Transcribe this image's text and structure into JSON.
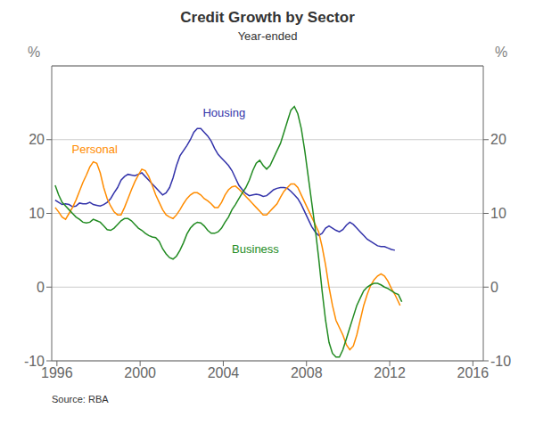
{
  "chart_data": {
    "type": "line",
    "title": "Credit Growth by Sector",
    "subtitle": "Year-ended",
    "ylabel": "%",
    "y2label": "%",
    "source": "Source: RBA",
    "xlim": [
      1995.75,
      2016.5
    ],
    "xticks": [
      1996,
      2000,
      2004,
      2008,
      2012,
      2016
    ],
    "ylim": [
      -10,
      30
    ],
    "yticks": [
      -10,
      0,
      10,
      20
    ],
    "y2lim": [
      -10,
      30
    ],
    "y2ticks": [
      -10,
      0,
      10,
      20
    ],
    "grid": true,
    "annotations": [
      {
        "text": "Housing",
        "x": 2002.8,
        "y": 22.5,
        "color": "#3333AA"
      },
      {
        "text": "Personal",
        "x": 1996.5,
        "y": 17.5,
        "color": "#FF8C00"
      },
      {
        "text": "Business",
        "x": 2004.2,
        "y": 4.0,
        "color": "#228B22"
      }
    ],
    "series": [
      {
        "name": "Housing",
        "color": "#3333AA",
        "x": [
          1995.917,
          1996.083,
          1996.25,
          1996.417,
          1996.583,
          1996.75,
          1996.917,
          1997.083,
          1997.25,
          1997.417,
          1997.583,
          1997.75,
          1997.917,
          1998.083,
          1998.25,
          1998.417,
          1998.583,
          1998.75,
          1998.917,
          1999.083,
          1999.25,
          1999.417,
          1999.583,
          1999.75,
          1999.917,
          2000.083,
          2000.25,
          2000.417,
          2000.583,
          2000.75,
          2000.917,
          2001.083,
          2001.25,
          2001.417,
          2001.583,
          2001.75,
          2001.917,
          2002.083,
          2002.25,
          2002.417,
          2002.583,
          2002.75,
          2002.917,
          2003.083,
          2003.25,
          2003.417,
          2003.583,
          2003.75,
          2003.917,
          2004.083,
          2004.25,
          2004.417,
          2004.583,
          2004.75,
          2004.917,
          2005.083,
          2005.25,
          2005.417,
          2005.583,
          2005.75,
          2005.917,
          2006.083,
          2006.25,
          2006.417,
          2006.583,
          2006.75,
          2006.917,
          2007.083,
          2007.25,
          2007.417,
          2007.583,
          2007.75,
          2007.917,
          2008.083,
          2008.25,
          2008.417,
          2008.583,
          2008.75,
          2008.917,
          2009.083,
          2009.25,
          2009.417,
          2009.583,
          2009.75,
          2009.917,
          2010.083,
          2010.25,
          2010.417,
          2010.583,
          2010.75,
          2010.917,
          2011.083,
          2011.25,
          2011.417,
          2011.583,
          2011.75,
          2011.917,
          2012.083,
          2012.25
        ],
        "values": [
          11.8,
          11.5,
          11.2,
          11.3,
          11.2,
          10.9,
          11.0,
          11.4,
          11.3,
          11.3,
          11.5,
          11.2,
          11.1,
          11.0,
          11.2,
          11.5,
          12.0,
          12.8,
          13.5,
          14.5,
          15.0,
          15.3,
          15.2,
          15.1,
          15.3,
          15.5,
          15.0,
          14.5,
          14.0,
          13.5,
          13.0,
          12.5,
          12.8,
          13.5,
          14.8,
          16.5,
          17.8,
          18.5,
          19.2,
          20.0,
          21.0,
          21.5,
          21.5,
          21.0,
          20.5,
          19.8,
          18.8,
          18.0,
          17.5,
          17.0,
          16.5,
          15.8,
          14.8,
          13.8,
          13.2,
          12.7,
          12.4,
          12.5,
          12.6,
          12.5,
          12.3,
          12.4,
          12.8,
          13.2,
          13.4,
          13.5,
          13.5,
          13.4,
          13.0,
          12.5,
          12.0,
          11.2,
          10.2,
          9.2,
          8.2,
          7.5,
          7.0,
          7.3,
          8.0,
          8.3,
          8.0,
          7.7,
          7.5,
          7.8,
          8.4,
          8.8,
          8.5,
          8.0,
          7.5,
          7.0,
          6.5,
          6.2,
          5.9,
          5.6,
          5.5,
          5.5,
          5.3,
          5.1,
          5.0
        ]
      },
      {
        "name": "Personal",
        "color": "#FF8C00",
        "x": [
          1995.917,
          1996.083,
          1996.25,
          1996.417,
          1996.583,
          1996.75,
          1996.917,
          1997.083,
          1997.25,
          1997.417,
          1997.583,
          1997.75,
          1997.917,
          1998.083,
          1998.25,
          1998.417,
          1998.583,
          1998.75,
          1998.917,
          1999.083,
          1999.25,
          1999.417,
          1999.583,
          1999.75,
          1999.917,
          2000.083,
          2000.25,
          2000.417,
          2000.583,
          2000.75,
          2000.917,
          2001.083,
          2001.25,
          2001.417,
          2001.583,
          2001.75,
          2001.917,
          2002.083,
          2002.25,
          2002.417,
          2002.583,
          2002.75,
          2002.917,
          2003.083,
          2003.25,
          2003.417,
          2003.583,
          2003.75,
          2003.917,
          2004.083,
          2004.25,
          2004.417,
          2004.583,
          2004.75,
          2004.917,
          2005.083,
          2005.25,
          2005.417,
          2005.583,
          2005.75,
          2005.917,
          2006.083,
          2006.25,
          2006.417,
          2006.583,
          2006.75,
          2006.917,
          2007.083,
          2007.25,
          2007.417,
          2007.583,
          2007.75,
          2007.917,
          2008.083,
          2008.25,
          2008.417,
          2008.583,
          2008.75,
          2008.917,
          2009.083,
          2009.25,
          2009.417,
          2009.583,
          2009.75,
          2009.917,
          2010.083,
          2010.25,
          2010.417,
          2010.583,
          2010.75,
          2010.917,
          2011.083,
          2011.25,
          2011.417,
          2011.583,
          2011.75,
          2011.917,
          2012.083,
          2012.25,
          2012.417,
          2012.5
        ],
        "values": [
          10.8,
          10.2,
          9.5,
          9.2,
          10.0,
          10.8,
          11.8,
          13.0,
          14.2,
          15.2,
          16.3,
          17.0,
          16.8,
          15.5,
          13.5,
          12.0,
          11.0,
          10.2,
          9.8,
          9.8,
          10.8,
          12.0,
          13.2,
          14.3,
          15.2,
          16.0,
          15.8,
          15.0,
          13.8,
          12.5,
          11.5,
          10.5,
          9.8,
          9.5,
          9.3,
          9.8,
          10.5,
          11.3,
          12.0,
          12.5,
          12.8,
          12.8,
          12.5,
          12.0,
          11.7,
          11.3,
          10.8,
          10.8,
          11.5,
          12.5,
          13.2,
          13.6,
          13.7,
          13.3,
          12.8,
          12.3,
          11.8,
          11.3,
          10.8,
          10.3,
          9.8,
          9.8,
          10.3,
          10.8,
          11.3,
          12.2,
          13.0,
          13.5,
          14.0,
          14.0,
          13.5,
          12.5,
          11.5,
          10.5,
          9.5,
          8.5,
          7.5,
          5.5,
          3.0,
          0.0,
          -2.5,
          -4.5,
          -5.5,
          -6.5,
          -7.8,
          -8.5,
          -8.0,
          -6.5,
          -4.5,
          -2.5,
          -1.0,
          0.2,
          1.0,
          1.5,
          1.8,
          1.5,
          0.8,
          -0.2,
          -1.0,
          -2.0,
          -2.5
        ]
      },
      {
        "name": "Business",
        "color": "#228B22",
        "x": [
          1995.917,
          1996.083,
          1996.25,
          1996.417,
          1996.583,
          1996.75,
          1996.917,
          1997.083,
          1997.25,
          1997.417,
          1997.583,
          1997.75,
          1997.917,
          1998.083,
          1998.25,
          1998.417,
          1998.583,
          1998.75,
          1998.917,
          1999.083,
          1999.25,
          1999.417,
          1999.583,
          1999.75,
          1999.917,
          2000.083,
          2000.25,
          2000.417,
          2000.583,
          2000.75,
          2000.917,
          2001.083,
          2001.25,
          2001.417,
          2001.583,
          2001.75,
          2001.917,
          2002.083,
          2002.25,
          2002.417,
          2002.583,
          2002.75,
          2002.917,
          2003.083,
          2003.25,
          2003.417,
          2003.583,
          2003.75,
          2003.917,
          2004.083,
          2004.25,
          2004.417,
          2004.583,
          2004.75,
          2004.917,
          2005.083,
          2005.25,
          2005.417,
          2005.583,
          2005.75,
          2005.917,
          2006.083,
          2006.25,
          2006.417,
          2006.583,
          2006.75,
          2006.917,
          2007.083,
          2007.25,
          2007.417,
          2007.583,
          2007.75,
          2007.917,
          2008.083,
          2008.25,
          2008.417,
          2008.583,
          2008.75,
          2008.917,
          2009.083,
          2009.25,
          2009.417,
          2009.583,
          2009.75,
          2009.917,
          2010.083,
          2010.25,
          2010.417,
          2010.583,
          2010.75,
          2010.917,
          2011.083,
          2011.25,
          2011.417,
          2011.583,
          2011.75,
          2011.917,
          2012.083,
          2012.25,
          2012.417,
          2012.5,
          2012.583
        ],
        "values": [
          13.8,
          12.5,
          11.5,
          11.0,
          10.5,
          10.0,
          9.5,
          9.2,
          8.8,
          8.7,
          8.8,
          9.2,
          9.0,
          8.8,
          8.3,
          7.8,
          7.7,
          8.0,
          8.5,
          9.0,
          9.3,
          9.3,
          9.0,
          8.5,
          8.0,
          7.7,
          7.3,
          7.0,
          6.8,
          6.7,
          6.2,
          5.2,
          4.5,
          4.0,
          3.8,
          4.2,
          5.0,
          6.0,
          7.2,
          8.0,
          8.5,
          8.8,
          8.7,
          8.3,
          7.7,
          7.3,
          7.3,
          7.5,
          8.0,
          8.8,
          9.5,
          10.5,
          11.2,
          12.0,
          12.8,
          13.5,
          14.5,
          15.8,
          16.8,
          17.2,
          16.5,
          16.0,
          16.5,
          17.5,
          18.5,
          19.5,
          21.0,
          22.5,
          24.0,
          24.5,
          23.5,
          21.5,
          18.5,
          15.0,
          11.5,
          8.0,
          4.0,
          -0.5,
          -4.5,
          -7.5,
          -9.0,
          -9.5,
          -9.5,
          -8.5,
          -7.0,
          -5.5,
          -4.0,
          -2.5,
          -1.5,
          -0.5,
          0.0,
          0.3,
          0.5,
          0.5,
          0.3,
          0.0,
          -0.2,
          -0.5,
          -0.8,
          -1.0,
          -1.5,
          -2.0
        ]
      }
    ]
  }
}
